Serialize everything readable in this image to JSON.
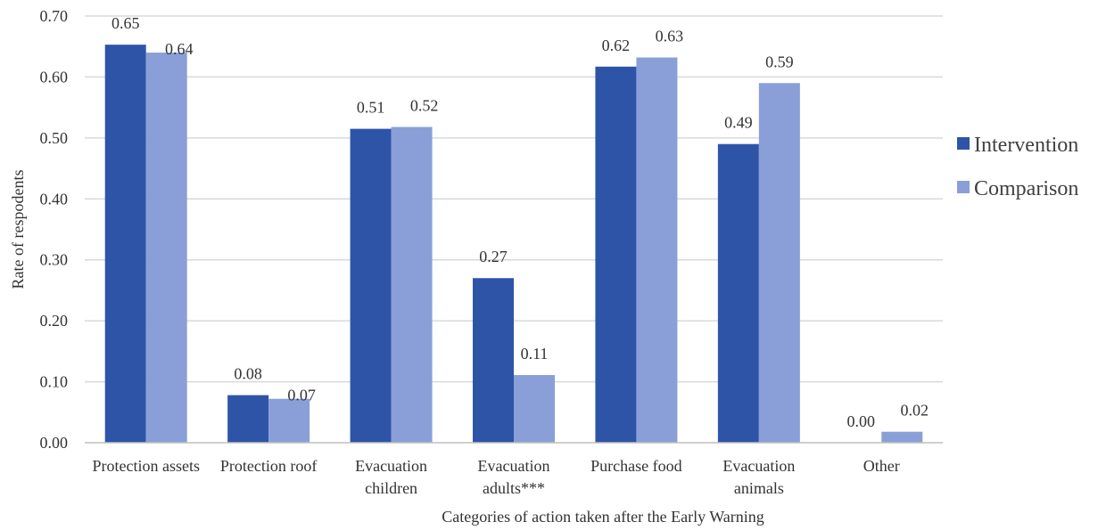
{
  "chart_data": {
    "type": "bar",
    "title": "",
    "xlabel": "Categories of action taken after the Early Warning",
    "ylabel": "Rate of respodents",
    "ylim": [
      0,
      0.7
    ],
    "yticks": [
      "0.00",
      "0.10",
      "0.20",
      "0.30",
      "0.40",
      "0.50",
      "0.60",
      "0.70"
    ],
    "grid": true,
    "legend_position": "right",
    "categories": [
      [
        "Protection assets"
      ],
      [
        "Protection roof"
      ],
      [
        "Evacuation",
        "children"
      ],
      [
        "Evacuation",
        "adults***"
      ],
      [
        "Purchase food"
      ],
      [
        "Evacuation",
        "animals"
      ],
      [
        "Other"
      ]
    ],
    "series": [
      {
        "name": "Intervention",
        "color": "#2E54A8",
        "values": [
          0.653,
          0.078,
          0.515,
          0.27,
          0.617,
          0.49,
          0.0
        ],
        "labels": [
          "0.65",
          "0.08",
          "0.51",
          "0.27",
          "0.62",
          "0.49",
          "0.00"
        ]
      },
      {
        "name": "Comparison",
        "color": "#8A9FD8",
        "values": [
          0.64,
          0.072,
          0.518,
          0.111,
          0.632,
          0.59,
          0.018
        ],
        "labels": [
          "0.64",
          "0.07",
          "0.52",
          "0.11",
          "0.63",
          "0.59",
          "0.02"
        ]
      }
    ]
  }
}
